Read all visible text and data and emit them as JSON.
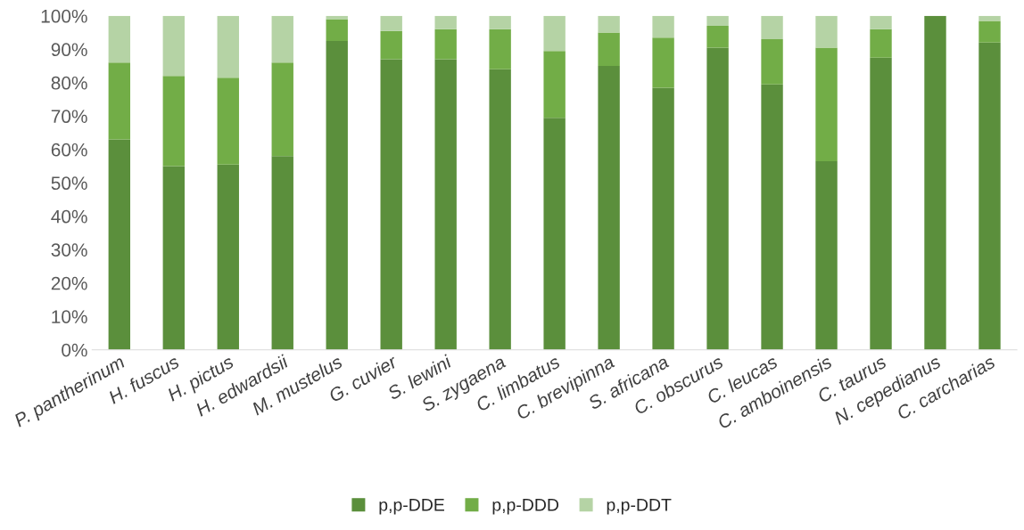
{
  "chart_data": {
    "type": "bar",
    "stacked": true,
    "categories": [
      "P. pantherinum",
      "H. fuscus",
      "H. pictus",
      "H. edwardsii",
      "M. mustelus",
      "G. cuvier",
      "S. lewini",
      "S. zygaena",
      "C. limbatus",
      "C. brevipinna",
      "S. africana",
      "C. obscurus",
      "C. leucas",
      "C. amboinensis",
      "C. taurus",
      "N. cepedianus",
      "C. carcharias"
    ],
    "series": [
      {
        "name": "p,p-DDE",
        "color": "#5b8f3c",
        "values": [
          63,
          55,
          55.5,
          58,
          92.5,
          87,
          87,
          84,
          69.5,
          85,
          78.5,
          90.5,
          79.5,
          56.5,
          87.5,
          100,
          92
        ]
      },
      {
        "name": "p,p-DDD",
        "color": "#72ad47",
        "values": [
          23,
          27,
          26,
          28,
          6.5,
          8.5,
          9,
          12,
          20,
          10,
          15,
          6.5,
          13.5,
          34,
          8.5,
          0,
          6.5
        ]
      },
      {
        "name": "p,p-DDT",
        "color": "#b5d3a5",
        "values": [
          14,
          18,
          18.5,
          14,
          1,
          4.5,
          4,
          4,
          10.5,
          5,
          6.5,
          3,
          7,
          9.5,
          4,
          0,
          1.5
        ]
      }
    ],
    "ylim": [
      0,
      100
    ],
    "yticks": [
      {
        "value": 0,
        "label": "0%"
      },
      {
        "value": 10,
        "label": "10%"
      },
      {
        "value": 20,
        "label": "20%"
      },
      {
        "value": 30,
        "label": "30%"
      },
      {
        "value": 40,
        "label": "40%"
      },
      {
        "value": 50,
        "label": "50%"
      },
      {
        "value": 60,
        "label": "60%"
      },
      {
        "value": 70,
        "label": "70%"
      },
      {
        "value": 80,
        "label": "80%"
      },
      {
        "value": 90,
        "label": "90%"
      },
      {
        "value": 100,
        "label": "100%"
      }
    ],
    "legend": "bottom"
  }
}
